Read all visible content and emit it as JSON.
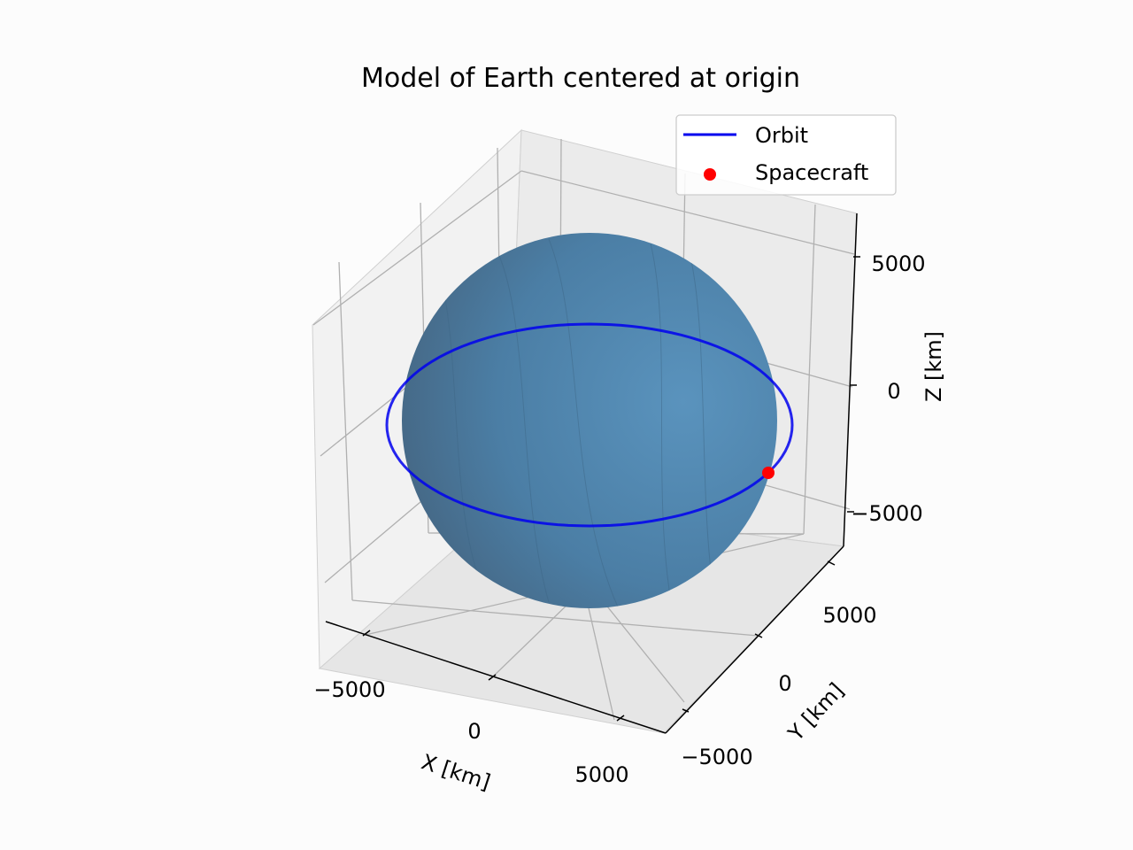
{
  "chart_data": {
    "type": "3d-line-scatter",
    "title": "Model of Earth centered at origin",
    "xlabel": "X [km]",
    "ylabel": "Y [km]",
    "zlabel": "Z [km]",
    "xlim": [
      -7000,
      7000
    ],
    "ylim": [
      -7000,
      7000
    ],
    "zlim": [
      -7000,
      7000
    ],
    "x_ticks": [
      {
        "value": -5000,
        "label": "−5000"
      },
      {
        "value": 0,
        "label": "0"
      },
      {
        "value": 5000,
        "label": "5000"
      }
    ],
    "y_ticks": [
      {
        "value": -5000,
        "label": "−5000"
      },
      {
        "value": 0,
        "label": "0"
      },
      {
        "value": 5000,
        "label": "5000"
      }
    ],
    "z_ticks": [
      {
        "value": -5000,
        "label": "−5000"
      },
      {
        "value": 0,
        "label": "0"
      },
      {
        "value": 5000,
        "label": "5000"
      }
    ],
    "grid": true,
    "legend_position": "top-right",
    "surfaces": [
      {
        "type": "sphere",
        "center": [
          0,
          0,
          0
        ],
        "radius": 6371,
        "color": "#4a7fa5"
      }
    ],
    "series": [
      {
        "name": "Orbit",
        "type": "line",
        "color": "#0000ee",
        "description_shape": "circular orbit in equatorial plane",
        "radius": 7000,
        "center": [
          0,
          0,
          0
        ]
      },
      {
        "name": "Spacecraft",
        "type": "scatter",
        "color": "#ff0000",
        "points": [
          [
            5500,
            -4300,
            0
          ]
        ]
      }
    ]
  },
  "legend": {
    "items": [
      {
        "label": "Orbit",
        "color": "#0000ee"
      },
      {
        "label": "Spacecraft",
        "color": "#ff0000"
      }
    ]
  }
}
